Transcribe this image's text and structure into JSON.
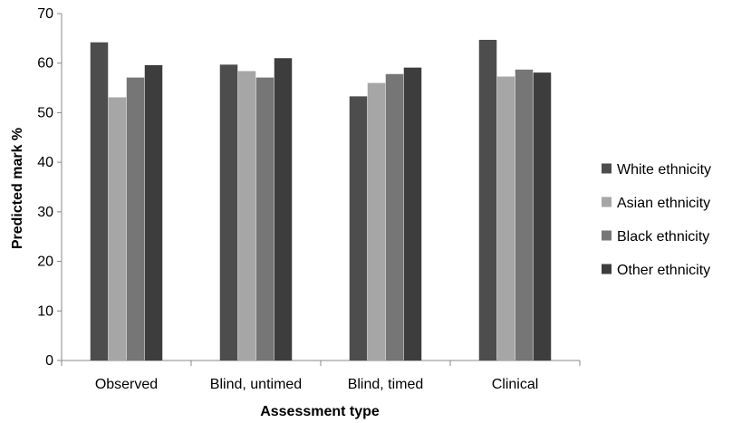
{
  "chart_data": {
    "type": "bar",
    "title": "",
    "xlabel": "Assessment type",
    "ylabel": "Predicted mark %",
    "ylim": [
      0,
      70
    ],
    "yticks": [
      0,
      10,
      20,
      30,
      40,
      50,
      60,
      70
    ],
    "grid": false,
    "legend_position": "right",
    "categories": [
      "Observed",
      "Blind, untimed",
      "Blind, timed",
      "Clinical"
    ],
    "series": [
      {
        "name": "White ethnicity",
        "color": "#4d4d4d",
        "values": [
          64.2,
          59.7,
          53.3,
          64.7
        ]
      },
      {
        "name": "Asian ethnicity",
        "color": "#a6a6a6",
        "values": [
          53.1,
          58.4,
          56.0,
          57.3
        ]
      },
      {
        "name": "Black ethnicity",
        "color": "#767676",
        "values": [
          57.1,
          57.1,
          57.8,
          58.7
        ]
      },
      {
        "name": "Other ethnicity",
        "color": "#3d3d3d",
        "values": [
          59.6,
          61.0,
          59.1,
          58.1
        ]
      }
    ]
  }
}
